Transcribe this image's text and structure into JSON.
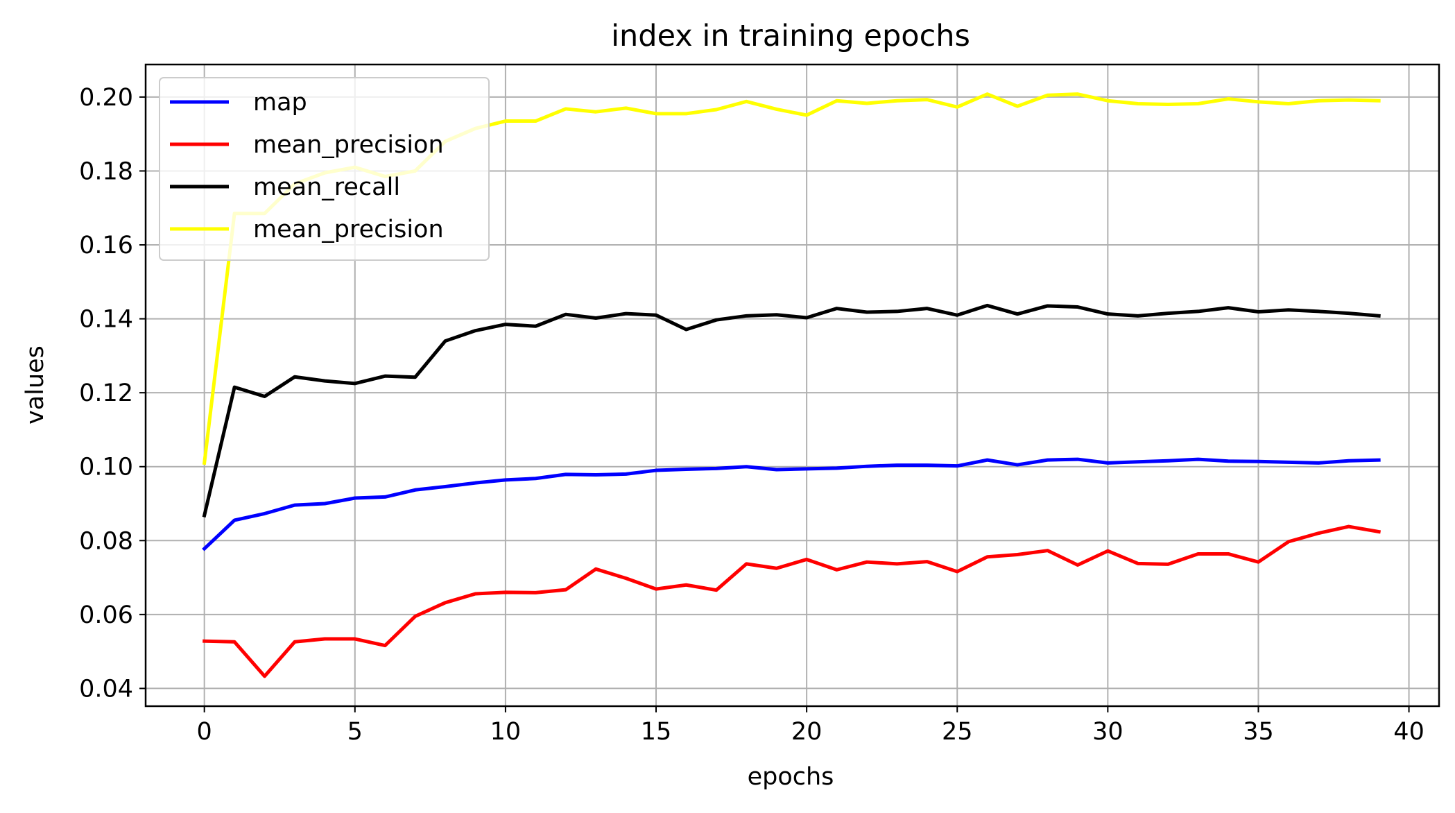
{
  "chart_data": {
    "type": "line",
    "title": "index in training epochs",
    "xlabel": "epochs",
    "ylabel": "values",
    "xlim": [
      -1.95,
      41.0
    ],
    "ylim": [
      0.0352,
      0.2088
    ],
    "x_ticks": [
      0,
      5,
      10,
      15,
      20,
      25,
      30,
      35,
      40
    ],
    "y_ticks": [
      0.04,
      0.06,
      0.08,
      0.1,
      0.12,
      0.14,
      0.16,
      0.18,
      0.2
    ],
    "x_tick_labels": [
      "0",
      "5",
      "10",
      "15",
      "20",
      "25",
      "30",
      "35",
      "40"
    ],
    "y_tick_labels": [
      "0.04",
      "0.06",
      "0.08",
      "0.10",
      "0.12",
      "0.14",
      "0.16",
      "0.18",
      "0.20"
    ],
    "grid": true,
    "legend_position": "upper-left",
    "x": [
      0,
      1,
      2,
      3,
      4,
      5,
      6,
      7,
      8,
      9,
      10,
      11,
      12,
      13,
      14,
      15,
      16,
      17,
      18,
      19,
      20,
      21,
      22,
      23,
      24,
      25,
      26,
      27,
      28,
      29,
      30,
      31,
      32,
      33,
      34,
      35,
      36,
      37,
      38,
      39
    ],
    "series": [
      {
        "name": "map",
        "color": "#0000ff",
        "values": [
          0.0778,
          0.0855,
          0.0873,
          0.0896,
          0.09,
          0.0915,
          0.0918,
          0.0937,
          0.0946,
          0.0956,
          0.0964,
          0.0968,
          0.0979,
          0.0978,
          0.098,
          0.099,
          0.0993,
          0.0995,
          0.1,
          0.0992,
          0.0994,
          0.0996,
          0.1001,
          0.1004,
          0.1004,
          0.1002,
          0.1018,
          0.1005,
          0.1018,
          0.102,
          0.101,
          0.1013,
          0.1016,
          0.102,
          0.1015,
          0.1014,
          0.1012,
          0.101,
          0.1016,
          0.1018
        ]
      },
      {
        "name": "mean_precision",
        "color": "#ff0000",
        "values": [
          0.0528,
          0.0526,
          0.0433,
          0.0526,
          0.0534,
          0.0534,
          0.0516,
          0.0595,
          0.0632,
          0.0656,
          0.066,
          0.0659,
          0.0667,
          0.0723,
          0.0698,
          0.0669,
          0.068,
          0.0666,
          0.0737,
          0.0725,
          0.0749,
          0.0721,
          0.0742,
          0.0737,
          0.0743,
          0.0716,
          0.0756,
          0.0762,
          0.0773,
          0.0734,
          0.0772,
          0.0738,
          0.0736,
          0.0764,
          0.0764,
          0.0742,
          0.0797,
          0.082,
          0.0838,
          0.0824
        ]
      },
      {
        "name": "mean_recall",
        "color": "#000000",
        "values": [
          0.0868,
          0.1215,
          0.119,
          0.1243,
          0.1232,
          0.1225,
          0.1245,
          0.1242,
          0.134,
          0.1368,
          0.1385,
          0.138,
          0.1412,
          0.1402,
          0.1414,
          0.141,
          0.1371,
          0.1397,
          0.1408,
          0.1411,
          0.1403,
          0.1428,
          0.1418,
          0.142,
          0.1428,
          0.141,
          0.1436,
          0.1413,
          0.1435,
          0.1432,
          0.1413,
          0.1408,
          0.1415,
          0.142,
          0.143,
          0.1419,
          0.1424,
          0.142,
          0.1415,
          0.1408
        ]
      },
      {
        "name": "mean_precision",
        "color": "#ffff00",
        "values": [
          0.101,
          0.1685,
          0.1685,
          0.1765,
          0.1795,
          0.181,
          0.1785,
          0.18,
          0.188,
          0.1915,
          0.1935,
          0.1935,
          0.1968,
          0.196,
          0.197,
          0.1955,
          0.1955,
          0.1966,
          0.1988,
          0.1967,
          0.1951,
          0.199,
          0.1983,
          0.199,
          0.1993,
          0.1973,
          0.2008,
          0.1975,
          0.2005,
          0.2008,
          0.199,
          0.1982,
          0.198,
          0.1982,
          0.1995,
          0.1987,
          0.1982,
          0.199,
          0.1992,
          0.199
        ]
      }
    ]
  }
}
